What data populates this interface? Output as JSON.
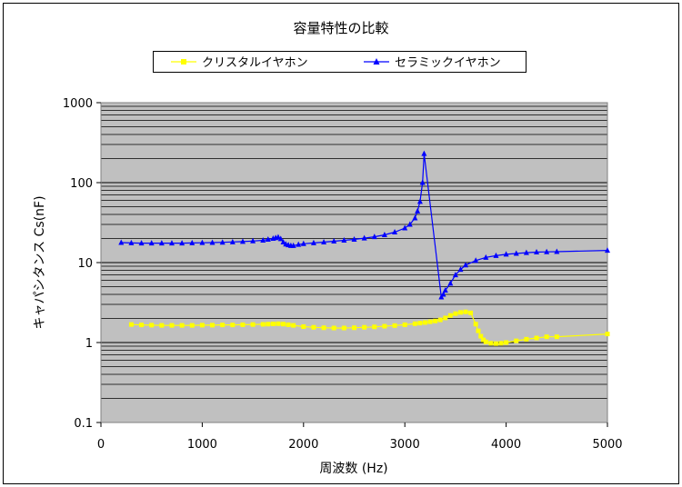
{
  "chart_data": {
    "type": "line",
    "title": "容量特性の比較",
    "xlabel": "周波数 (Hz)",
    "ylabel": "キャパシタンス Cs(nF)",
    "y_scale": "log",
    "xlim": [
      0,
      5000
    ],
    "ylim": [
      0.1,
      1000
    ],
    "x_ticks": [
      "0",
      "1000",
      "2000",
      "3000",
      "4000",
      "5000"
    ],
    "y_ticks": [
      "0.1",
      "1",
      "10",
      "100",
      "1000"
    ],
    "legend_position": "top",
    "plot_background": "#c0c0c0",
    "series": [
      {
        "name": "クリスタルイヤホン",
        "color": "#ffff00",
        "marker": "square",
        "points": [
          [
            300,
            1.68
          ],
          [
            400,
            1.66
          ],
          [
            500,
            1.65
          ],
          [
            600,
            1.64
          ],
          [
            700,
            1.64
          ],
          [
            800,
            1.64
          ],
          [
            900,
            1.64
          ],
          [
            1000,
            1.65
          ],
          [
            1100,
            1.65
          ],
          [
            1200,
            1.66
          ],
          [
            1300,
            1.66
          ],
          [
            1400,
            1.67
          ],
          [
            1500,
            1.68
          ],
          [
            1600,
            1.69
          ],
          [
            1650,
            1.7
          ],
          [
            1700,
            1.71
          ],
          [
            1750,
            1.72
          ],
          [
            1800,
            1.7
          ],
          [
            1850,
            1.67
          ],
          [
            1900,
            1.64
          ],
          [
            2000,
            1.58
          ],
          [
            2100,
            1.55
          ],
          [
            2200,
            1.53
          ],
          [
            2300,
            1.52
          ],
          [
            2400,
            1.52
          ],
          [
            2500,
            1.53
          ],
          [
            2600,
            1.55
          ],
          [
            2700,
            1.57
          ],
          [
            2800,
            1.6
          ],
          [
            2900,
            1.63
          ],
          [
            3000,
            1.67
          ],
          [
            3100,
            1.72
          ],
          [
            3150,
            1.75
          ],
          [
            3200,
            1.78
          ],
          [
            3250,
            1.82
          ],
          [
            3300,
            1.86
          ],
          [
            3350,
            1.92
          ],
          [
            3400,
            2.03
          ],
          [
            3450,
            2.18
          ],
          [
            3500,
            2.3
          ],
          [
            3550,
            2.38
          ],
          [
            3600,
            2.42
          ],
          [
            3650,
            2.35
          ],
          [
            3700,
            1.7
          ],
          [
            3725,
            1.4
          ],
          [
            3750,
            1.2
          ],
          [
            3775,
            1.08
          ],
          [
            3800,
            1.02
          ],
          [
            3850,
            0.98
          ],
          [
            3900,
            0.97
          ],
          [
            3950,
            0.98
          ],
          [
            4000,
            1.0
          ],
          [
            4100,
            1.05
          ],
          [
            4200,
            1.1
          ],
          [
            4300,
            1.14
          ],
          [
            4400,
            1.18
          ],
          [
            4500,
            1.18
          ],
          [
            5000,
            1.28
          ]
        ]
      },
      {
        "name": "セラミックイヤホン",
        "color": "#0000ff",
        "marker": "triangle",
        "points": [
          [
            200,
            17.8
          ],
          [
            300,
            17.6
          ],
          [
            400,
            17.5
          ],
          [
            500,
            17.5
          ],
          [
            600,
            17.5
          ],
          [
            700,
            17.5
          ],
          [
            800,
            17.5
          ],
          [
            900,
            17.6
          ],
          [
            1000,
            17.7
          ],
          [
            1100,
            17.8
          ],
          [
            1200,
            17.9
          ],
          [
            1300,
            18.1
          ],
          [
            1400,
            18.3
          ],
          [
            1500,
            18.6
          ],
          [
            1600,
            19.0
          ],
          [
            1650,
            19.5
          ],
          [
            1700,
            20.0
          ],
          [
            1725,
            20.4
          ],
          [
            1750,
            20.8
          ],
          [
            1775,
            19.8
          ],
          [
            1800,
            18.0
          ],
          [
            1825,
            17.0
          ],
          [
            1850,
            16.6
          ],
          [
            1875,
            16.3
          ],
          [
            1900,
            16.3
          ],
          [
            1950,
            16.8
          ],
          [
            2000,
            17.2
          ],
          [
            2100,
            17.6
          ],
          [
            2200,
            18.0
          ],
          [
            2300,
            18.5
          ],
          [
            2400,
            19.0
          ],
          [
            2500,
            19.5
          ],
          [
            2600,
            20.2
          ],
          [
            2700,
            21.0
          ],
          [
            2800,
            22.2
          ],
          [
            2900,
            24.0
          ],
          [
            3000,
            27.0
          ],
          [
            3050,
            30.0
          ],
          [
            3100,
            36.0
          ],
          [
            3125,
            44.0
          ],
          [
            3150,
            58.0
          ],
          [
            3175,
            100.0
          ],
          [
            3190,
            230.0
          ],
          [
            3360,
            3.7
          ],
          [
            3380,
            4.0
          ],
          [
            3400,
            4.5
          ],
          [
            3450,
            5.5
          ],
          [
            3500,
            7.0
          ],
          [
            3550,
            8.2
          ],
          [
            3600,
            9.3
          ],
          [
            3700,
            10.6
          ],
          [
            3800,
            11.6
          ],
          [
            3900,
            12.2
          ],
          [
            4000,
            12.7
          ],
          [
            4100,
            13.0
          ],
          [
            4200,
            13.3
          ],
          [
            4300,
            13.5
          ],
          [
            4400,
            13.6
          ],
          [
            4500,
            13.7
          ],
          [
            5000,
            14.2
          ]
        ]
      }
    ]
  }
}
